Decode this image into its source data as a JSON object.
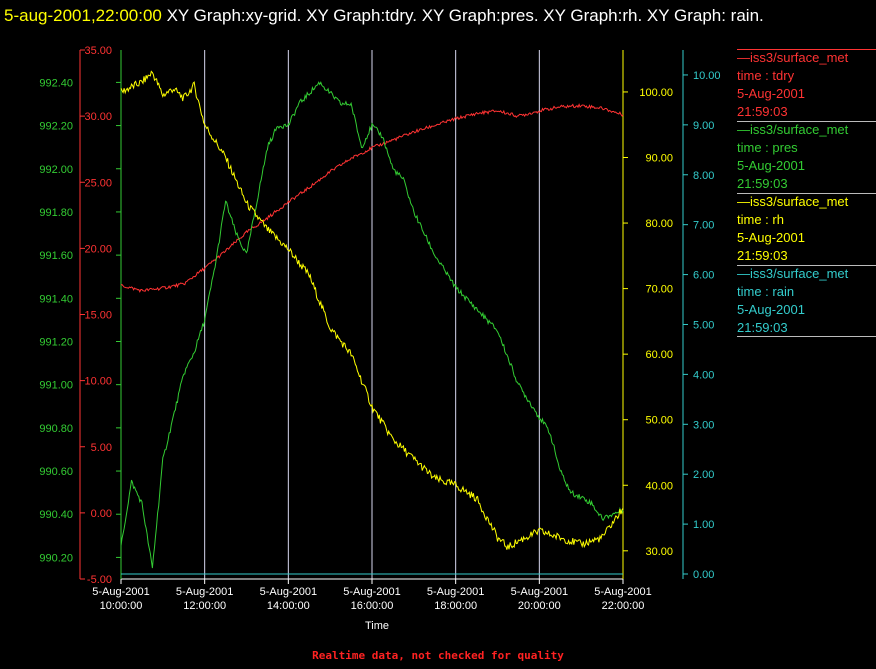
{
  "header": {
    "timestamp": "5-aug-2001,22:00:00",
    "rest": " XY Graph:xy-grid.  XY Graph:tdry.  XY Graph:pres.  XY Graph:rh.  XY Graph: rain."
  },
  "footer": "Realtime data, not checked for quality",
  "chart_data": {
    "type": "line",
    "xlabel": "Time",
    "x_ticks": [
      [
        "5-Aug-2001",
        "10:00:00"
      ],
      [
        "5-Aug-2001",
        "12:00:00"
      ],
      [
        "5-Aug-2001",
        "14:00:00"
      ],
      [
        "5-Aug-2001",
        "16:00:00"
      ],
      [
        "5-Aug-2001",
        "18:00:00"
      ],
      [
        "5-Aug-2001",
        "20:00:00"
      ],
      [
        "5-Aug-2001",
        "22:00:00"
      ]
    ],
    "x_range_hours": [
      10,
      22
    ],
    "axes": {
      "tdry": {
        "ylim": [
          -5,
          35
        ],
        "ticks": [
          "35.00",
          "30.00",
          "25.00",
          "20.00",
          "15.00",
          "10.00",
          "5.00",
          "0.00",
          "-5.00"
        ],
        "color": "#ff3333"
      },
      "pres": {
        "ylim": [
          990.1,
          992.55
        ],
        "ticks": [
          "992.40",
          "992.20",
          "992.00",
          "991.80",
          "991.60",
          "991.40",
          "991.20",
          "991.00",
          "990.80",
          "990.60",
          "990.40",
          "990.20"
        ],
        "color": "#33cc33"
      },
      "rh": {
        "ylim": [
          25.7,
          106.4
        ],
        "ticks": [
          "100.00",
          "90.00",
          "80.00",
          "70.00",
          "60.00",
          "50.00",
          "40.00",
          "30.00"
        ],
        "color": "#ffff00"
      },
      "rain": {
        "ylim": [
          -0.1,
          10.5
        ],
        "ticks": [
          "10.00",
          "9.00",
          "8.00",
          "7.00",
          "6.00",
          "5.00",
          "4.00",
          "3.00",
          "2.00",
          "1.00",
          "0.00"
        ],
        "color": "#33cccc"
      }
    },
    "series": [
      {
        "name": "tdry",
        "color": "#ff3333",
        "x": [
          10,
          10.5,
          11,
          11.5,
          12,
          12.5,
          13,
          13.5,
          14,
          14.5,
          15,
          15.5,
          16,
          16.5,
          17,
          17.5,
          18,
          18.5,
          19,
          19.5,
          20,
          20.5,
          21,
          21.5,
          22
        ],
        "values": [
          17.2,
          16.8,
          17.0,
          17.3,
          18.5,
          19.8,
          21.2,
          22.3,
          23.5,
          24.6,
          25.8,
          26.8,
          27.6,
          28.2,
          28.8,
          29.3,
          29.8,
          30.2,
          30.4,
          30.0,
          30.4,
          30.7,
          30.8,
          30.6,
          30.1
        ]
      },
      {
        "name": "pres",
        "color": "#33cc33",
        "x": [
          10,
          10.25,
          10.5,
          10.75,
          11,
          11.25,
          11.5,
          11.75,
          12,
          12.25,
          12.5,
          12.75,
          13,
          13.25,
          13.5,
          13.75,
          14,
          14.25,
          14.5,
          14.75,
          15,
          15.25,
          15.5,
          15.75,
          16,
          16.25,
          16.5,
          16.75,
          17,
          17.5,
          18,
          18.5,
          19,
          19.5,
          20,
          20.25,
          20.5,
          20.75,
          21,
          21.25,
          21.5,
          21.75,
          22
        ],
        "values": [
          990.25,
          990.55,
          990.45,
          990.15,
          990.65,
          990.85,
          991.05,
          991.15,
          991.3,
          991.55,
          991.85,
          991.7,
          991.6,
          991.85,
          992.1,
          992.2,
          992.2,
          992.3,
          992.35,
          992.4,
          992.35,
          992.3,
          992.3,
          992.1,
          992.2,
          992.15,
          992.0,
          991.95,
          991.8,
          991.6,
          991.45,
          991.35,
          991.25,
          991.0,
          990.85,
          990.78,
          990.6,
          990.5,
          990.48,
          990.45,
          990.38,
          990.4,
          990.42
        ]
      },
      {
        "name": "rh",
        "color": "#ffff00",
        "x": [
          10,
          10.5,
          10.75,
          11,
          11.25,
          11.5,
          11.75,
          12,
          12.5,
          13,
          13.5,
          14,
          14.5,
          15,
          15.5,
          15.75,
          16,
          16.5,
          17,
          17.5,
          18,
          18.5,
          19,
          19.25,
          19.5,
          20,
          20.5,
          21,
          21.5,
          22
        ],
        "values": [
          100,
          101.5,
          103,
          99.5,
          100.5,
          99,
          101,
          95,
          90,
          83,
          79,
          76,
          72,
          64,
          60,
          56,
          52,
          47,
          44,
          41,
          40,
          38,
          32,
          30.5,
          31.5,
          33,
          32,
          31,
          32,
          36.5
        ]
      },
      {
        "name": "rain",
        "color": "#33cccc",
        "x": [
          10,
          22
        ],
        "values": [
          0,
          0
        ]
      }
    ]
  },
  "legend": [
    {
      "source": "—iss3/surface_met",
      "var": "time : tdry",
      "date": "5-Aug-2001",
      "time": "21:59:03",
      "color": "#ff3333"
    },
    {
      "source": "—iss3/surface_met",
      "var": "time : pres",
      "date": "5-Aug-2001",
      "time": "21:59:03",
      "color": "#33cc33"
    },
    {
      "source": "—iss3/surface_met",
      "var": "time : rh",
      "date": "5-Aug-2001",
      "time": "21:59:03",
      "color": "#ffff00"
    },
    {
      "source": "—iss3/surface_met",
      "var": "time : rain",
      "date": "5-Aug-2001",
      "time": "21:59:03",
      "color": "#33cccc"
    }
  ]
}
